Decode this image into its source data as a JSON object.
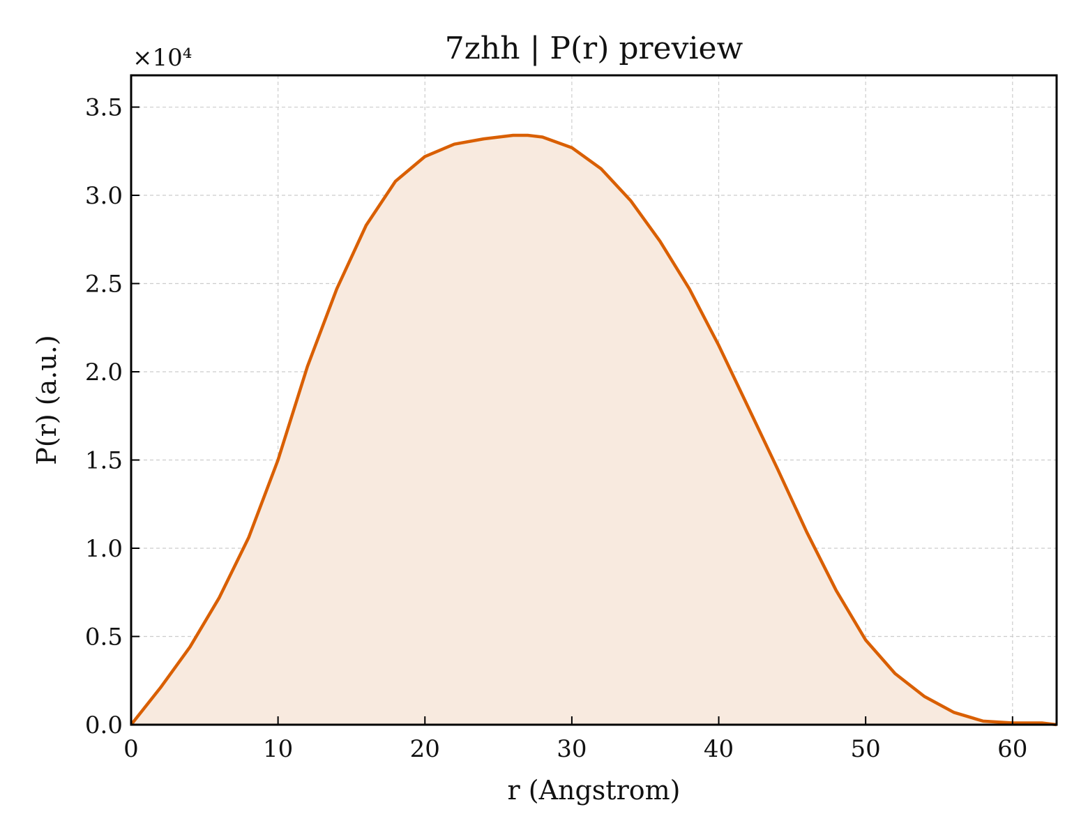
{
  "chart_data": {
    "type": "area",
    "title": "7zhh | P(r) preview",
    "xlabel": "r (Angstrom)",
    "ylabel": "P(r) (a.u.)",
    "y_multiplier_label": "×10⁴",
    "xlim": [
      0,
      63
    ],
    "ylim": [
      0,
      3.68
    ],
    "xticks": [
      0,
      10,
      20,
      30,
      40,
      50,
      60
    ],
    "yticks": [
      0.0,
      0.5,
      1.0,
      1.5,
      2.0,
      2.5,
      3.0,
      3.5
    ],
    "ytick_labels": [
      "0.0",
      "0.5",
      "1.0",
      "1.5",
      "2.0",
      "2.5",
      "3.0",
      "3.5"
    ],
    "grid": true,
    "colors": {
      "line": "#d95f02",
      "fill": "#f8eadf"
    },
    "series": [
      {
        "x": [
          0,
          2,
          4,
          6,
          8,
          10,
          12,
          14,
          16,
          18,
          20,
          22,
          24,
          26,
          27,
          28,
          30,
          32,
          34,
          36,
          38,
          40,
          42,
          44,
          46,
          48,
          50,
          52,
          54,
          56,
          58,
          60,
          61,
          62,
          63
        ],
        "y": [
          0.0,
          0.21,
          0.44,
          0.72,
          1.06,
          1.5,
          2.03,
          2.47,
          2.83,
          3.08,
          3.22,
          3.29,
          3.32,
          3.34,
          3.34,
          3.33,
          3.27,
          3.15,
          2.97,
          2.74,
          2.47,
          2.15,
          1.8,
          1.45,
          1.09,
          0.76,
          0.48,
          0.29,
          0.16,
          0.07,
          0.02,
          0.01,
          0.01,
          0.01,
          0.0
        ]
      }
    ]
  }
}
